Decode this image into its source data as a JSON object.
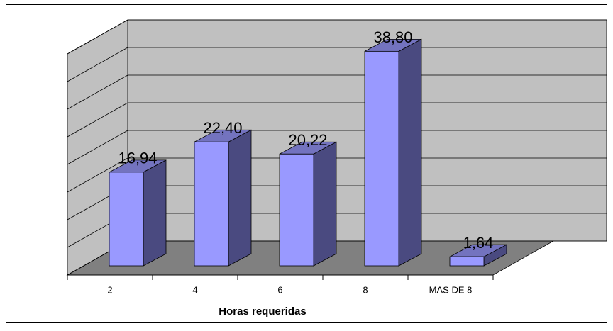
{
  "chart_data": {
    "type": "bar3d",
    "x_label": "Horas requeridas",
    "categories": [
      "2",
      "4",
      "6",
      "8",
      "MAS DE 8"
    ],
    "values": [
      16.94,
      22.4,
      20.22,
      38.8,
      1.64
    ],
    "value_labels": [
      "16,94",
      "22,40",
      "20,22",
      "38,80",
      "1,64"
    ],
    "color": "#9999ff",
    "ylim": [
      0,
      40
    ],
    "yticks": [
      0,
      5,
      10,
      15,
      20,
      25,
      30,
      35,
      40
    ],
    "grid": true
  }
}
